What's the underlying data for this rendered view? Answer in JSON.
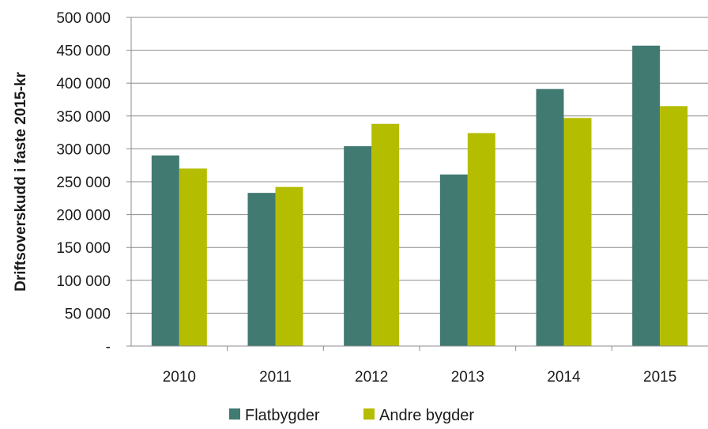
{
  "chart_data": {
    "type": "bar",
    "categories": [
      "2010",
      "2011",
      "2012",
      "2013",
      "2014",
      "2015"
    ],
    "series": [
      {
        "name": "Flatbygder",
        "color": "#417a71",
        "values": [
          290000,
          233000,
          304000,
          261000,
          391000,
          457000
        ]
      },
      {
        "name": "Andre bygder",
        "color": "#b5bd00",
        "values": [
          270000,
          242000,
          338000,
          324000,
          347000,
          365000
        ]
      }
    ],
    "title": "",
    "xlabel": "",
    "ylabel": "Driftsoverskudd i faste 2015-kr",
    "ylim": [
      0,
      500000
    ],
    "yticks": [
      {
        "value": 0,
        "label": "-"
      },
      {
        "value": 50000,
        "label": "50 000"
      },
      {
        "value": 100000,
        "label": "100 000"
      },
      {
        "value": 150000,
        "label": "150 000"
      },
      {
        "value": 200000,
        "label": "200 000"
      },
      {
        "value": 250000,
        "label": "250 000"
      },
      {
        "value": 300000,
        "label": "300 000"
      },
      {
        "value": 350000,
        "label": "350 000"
      },
      {
        "value": 400000,
        "label": "400 000"
      },
      {
        "value": 450000,
        "label": "450 000"
      },
      {
        "value": 500000,
        "label": "500 000"
      }
    ],
    "grid": true,
    "legend_position": "bottom",
    "grid_color": "#8c8c8c"
  }
}
